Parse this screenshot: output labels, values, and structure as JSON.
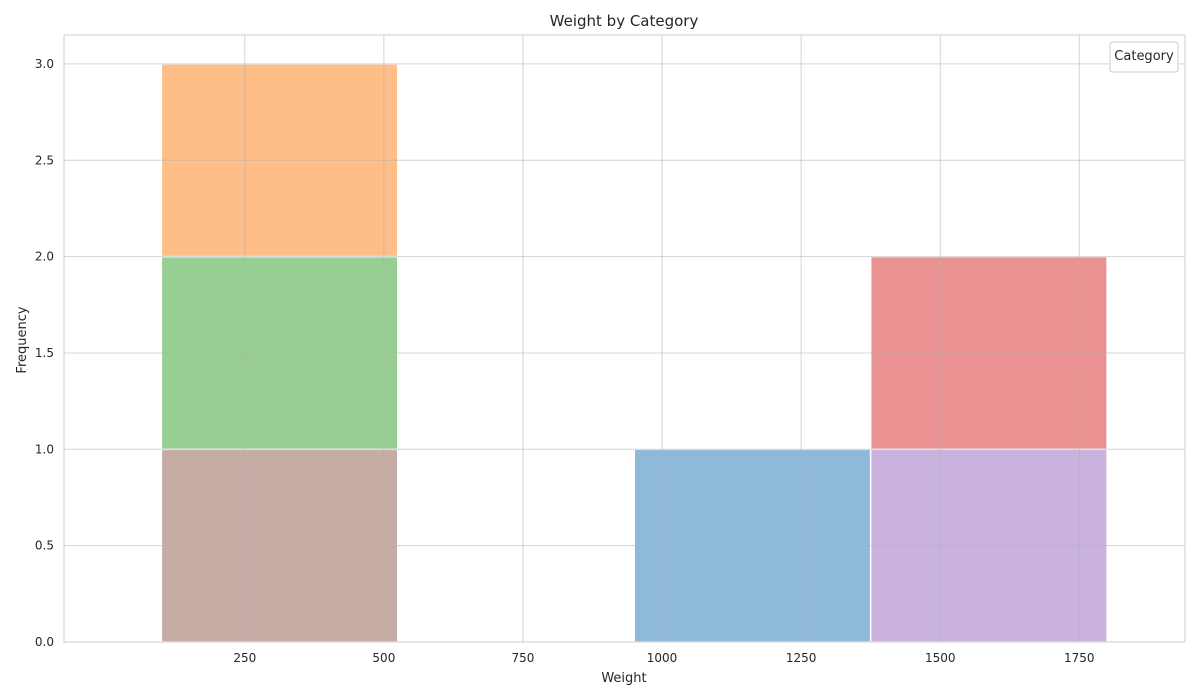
{
  "chart_data": {
    "type": "bar",
    "title": "Weight by Category",
    "xlabel": "Weight",
    "ylabel": "Frequency",
    "xlim": [
      -75,
      1940
    ],
    "ylim": [
      0,
      3.15
    ],
    "xticks": [
      250,
      500,
      750,
      1000,
      1250,
      1500,
      1750
    ],
    "xtick_labels": [
      "250",
      "500",
      "750",
      "1000",
      "1250",
      "1500",
      "1750"
    ],
    "yticks": [
      0.0,
      0.5,
      1.0,
      1.5,
      2.0,
      2.5,
      3.0
    ],
    "ytick_labels": [
      "0.0",
      "0.5",
      "1.0",
      "1.5",
      "2.0",
      "2.5",
      "3.0"
    ],
    "grid": true,
    "legend": {
      "title": "Category",
      "placement": "top-right",
      "entries": []
    },
    "stacked": true,
    "bins": [
      {
        "x0": 100,
        "x1": 525,
        "segments": [
          {
            "color": "#c5aca4",
            "from": 0,
            "to": 1
          },
          {
            "color": "#97cf93",
            "from": 1,
            "to": 2
          },
          {
            "color": "#ffbe87",
            "from": 2,
            "to": 3
          }
        ]
      },
      {
        "x0": 950,
        "x1": 1375,
        "segments": [
          {
            "color": "#8fb9d9",
            "from": 0,
            "to": 1
          }
        ]
      },
      {
        "x0": 1375,
        "x1": 1800,
        "segments": [
          {
            "color": "#c9b2de",
            "from": 0,
            "to": 1
          },
          {
            "color": "#ea9192",
            "from": 1,
            "to": 2
          }
        ]
      }
    ]
  }
}
